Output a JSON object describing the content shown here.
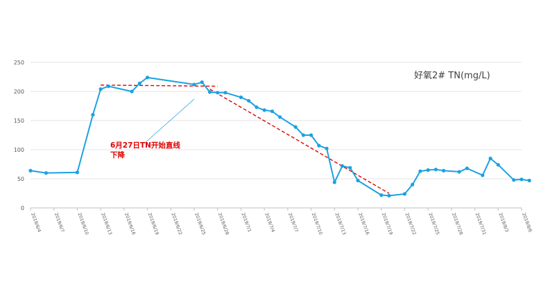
{
  "chart_data": {
    "type": "line",
    "title": "好氧2# TN(mg/L)",
    "xlabel": "",
    "ylabel": "",
    "ylim": [
      0,
      250
    ],
    "yticks": [
      0,
      50,
      100,
      150,
      200,
      250
    ],
    "grid": true,
    "legend": "none",
    "x_tick_labels": [
      "2019/6/4",
      "2019/6/7",
      "2019/6/10",
      "2019/6/13",
      "2019/6/16",
      "2019/6/19",
      "2019/6/22",
      "2019/6/25",
      "2019/6/28",
      "2019/7/1",
      "2019/7/4",
      "2019/7/7",
      "2019/7/10",
      "2019/7/13",
      "2019/7/16",
      "2019/7/19",
      "2019/7/22",
      "2019/7/25",
      "2019/7/28",
      "2019/7/31",
      "2019/8/3",
      "2019/8/6"
    ],
    "x_start": "2019-06-04",
    "x_end": "2019-08-06",
    "series": [
      {
        "name": "",
        "color": "#1ba1e2",
        "points": [
          [
            "2019-06-04",
            64
          ],
          [
            "2019-06-06",
            60
          ],
          [
            "2019-06-10",
            61
          ],
          [
            "2019-06-12",
            160
          ],
          [
            "2019-06-13",
            204
          ],
          [
            "2019-06-14",
            209
          ],
          [
            "2019-06-17",
            200
          ],
          [
            "2019-06-18",
            214
          ],
          [
            "2019-06-19",
            224
          ],
          [
            "2019-06-25",
            212
          ],
          [
            "2019-06-26",
            216
          ],
          [
            "2019-06-27",
            199
          ],
          [
            "2019-06-28",
            198
          ],
          [
            "2019-06-29",
            198
          ],
          [
            "2019-07-01",
            190
          ],
          [
            "2019-07-02",
            184
          ],
          [
            "2019-07-03",
            173
          ],
          [
            "2019-07-04",
            168
          ],
          [
            "2019-07-05",
            166
          ],
          [
            "2019-07-06",
            156
          ],
          [
            "2019-07-08",
            139
          ],
          [
            "2019-07-09",
            125
          ],
          [
            "2019-07-10",
            125
          ],
          [
            "2019-07-11",
            107
          ],
          [
            "2019-07-12",
            102
          ],
          [
            "2019-07-13",
            44
          ],
          [
            "2019-07-14",
            72
          ],
          [
            "2019-07-15",
            69
          ],
          [
            "2019-07-16",
            47
          ],
          [
            "2019-07-19",
            22
          ],
          [
            "2019-07-20",
            21
          ],
          [
            "2019-07-22",
            24
          ],
          [
            "2019-07-23",
            40
          ],
          [
            "2019-07-24",
            63
          ],
          [
            "2019-07-25",
            65
          ],
          [
            "2019-07-26",
            66
          ],
          [
            "2019-07-27",
            64
          ],
          [
            "2019-07-29",
            62
          ],
          [
            "2019-07-30",
            68
          ],
          [
            "2019-08-01",
            56
          ],
          [
            "2019-08-02",
            85
          ],
          [
            "2019-08-03",
            74
          ],
          [
            "2019-08-05",
            48
          ],
          [
            "2019-08-06",
            49
          ],
          [
            "2019-08-07",
            47
          ]
        ]
      }
    ],
    "trend_lines": [
      {
        "color": "#e00000",
        "style": "dashed",
        "points": [
          [
            "2019-06-13",
            211
          ],
          [
            "2019-06-28",
            209
          ]
        ]
      },
      {
        "color": "#e00000",
        "style": "dashed",
        "points": [
          [
            "2019-06-27",
            204
          ],
          [
            "2019-07-20",
            25
          ]
        ]
      }
    ],
    "annotation": {
      "lines": [
        "6月27日TN开始直线",
        "下降"
      ],
      "color": "#e00000",
      "pointer_to": [
        "2019-06-25",
        187
      ]
    }
  }
}
